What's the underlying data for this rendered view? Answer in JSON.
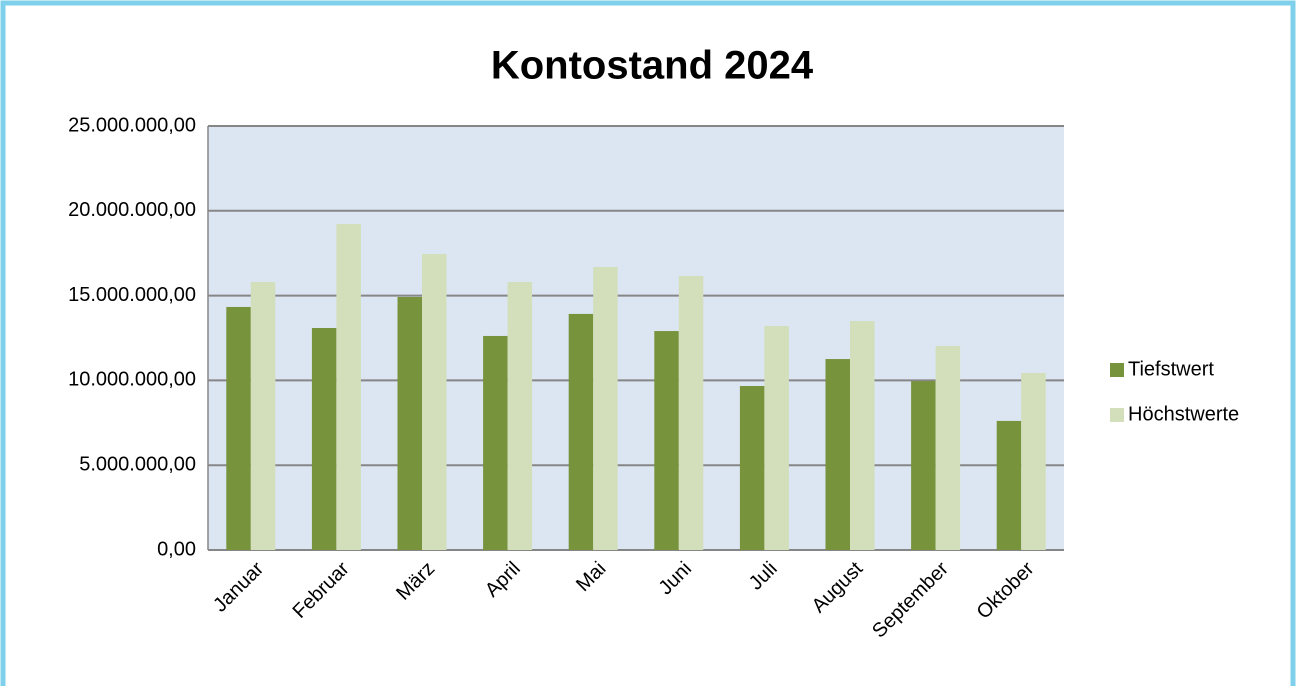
{
  "chart_data": {
    "type": "bar",
    "title": "Kontostand 2024",
    "categories": [
      "Januar",
      "Februar",
      "März",
      "April",
      "Mai",
      "Juni",
      "Juli",
      "August",
      "September",
      "Oktober"
    ],
    "series": [
      {
        "name": "Tiefstwert",
        "color": "#77933c",
        "values": [
          14330000,
          13090000,
          14920000,
          12620000,
          13920000,
          12910000,
          9670000,
          11260000,
          9960000,
          7610000
        ]
      },
      {
        "name": "Höchstwerte",
        "color": "#d2dfba",
        "values": [
          15800000,
          19220000,
          17450000,
          15800000,
          16690000,
          16160000,
          13210000,
          13500000,
          12030000,
          10440000
        ]
      }
    ],
    "ylim": [
      0,
      25000000
    ],
    "yticks": [
      {
        "value": 0,
        "label": "0,00"
      },
      {
        "value": 5000000,
        "label": "5.000.000,00"
      },
      {
        "value": 10000000,
        "label": "10.000.000,00"
      },
      {
        "value": 15000000,
        "label": "15.000.000,00"
      },
      {
        "value": 20000000,
        "label": "20.000.000,00"
      },
      {
        "value": 25000000,
        "label": "25.000.000,00"
      }
    ],
    "grid": true,
    "legend": "right"
  }
}
